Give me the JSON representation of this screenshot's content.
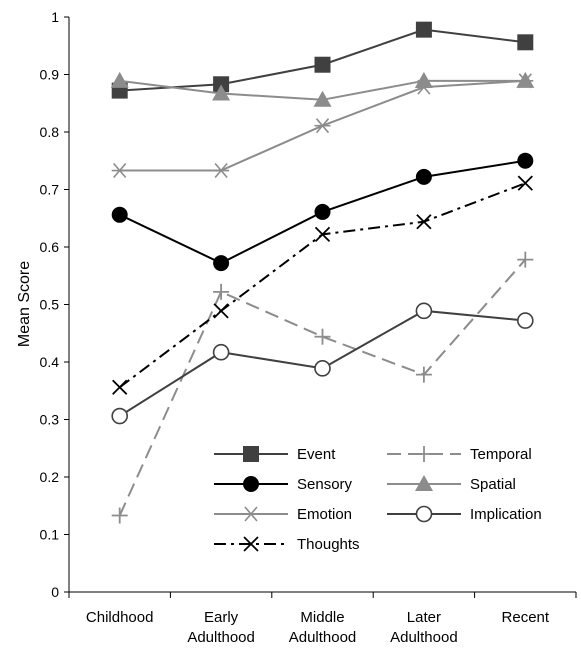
{
  "chart_data": {
    "type": "line",
    "title": "",
    "xlabel": "",
    "ylabel": "Mean Score",
    "ylim": [
      0,
      1
    ],
    "yticks": [
      "0",
      "0.1",
      "0.2",
      "0.3",
      "0.4",
      "0.5",
      "0.6",
      "0.7",
      "0.8",
      "0.9",
      "1"
    ],
    "categories": [
      [
        "Childhood"
      ],
      [
        "Early",
        "Adulthood"
      ],
      [
        "Middle",
        "Adulthood"
      ],
      [
        "Later",
        "Adulthood"
      ],
      [
        "Recent"
      ]
    ],
    "grid": false,
    "legend_position": "bottom-right, inside plot",
    "series": [
      {
        "name": "Event",
        "values": [
          0.872,
          0.883,
          0.917,
          0.978,
          0.956
        ],
        "color": "#404040",
        "marker": "square-filled",
        "dash": "solid"
      },
      {
        "name": "Temporal",
        "values": [
          0.133,
          0.522,
          0.444,
          0.378,
          0.578
        ],
        "color": "#8c8c8c",
        "marker": "plus",
        "dash": "long-dash"
      },
      {
        "name": "Sensory",
        "values": [
          0.656,
          0.572,
          0.661,
          0.722,
          0.75
        ],
        "color": "#000000",
        "marker": "circle-filled",
        "dash": "solid"
      },
      {
        "name": "Spatial",
        "values": [
          0.889,
          0.867,
          0.856,
          0.889,
          0.889
        ],
        "color": "#8c8c8c",
        "marker": "triangle-filled",
        "dash": "solid"
      },
      {
        "name": "Emotion",
        "values": [
          0.733,
          0.733,
          0.811,
          0.878,
          0.889
        ],
        "color": "#8c8c8c",
        "marker": "asterisk",
        "dash": "solid"
      },
      {
        "name": "Implication",
        "values": [
          0.306,
          0.417,
          0.389,
          0.489,
          0.472
        ],
        "color": "#404040",
        "marker": "circle-open",
        "dash": "solid"
      },
      {
        "name": "Thoughts",
        "values": [
          0.356,
          0.489,
          0.622,
          0.644,
          0.711
        ],
        "color": "#000000",
        "marker": "x",
        "dash": "dash-dot"
      }
    ]
  }
}
